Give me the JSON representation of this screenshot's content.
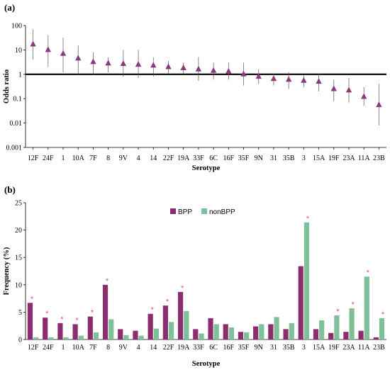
{
  "chart_data": [
    {
      "panel": "(a)",
      "type": "scatter",
      "xlabel": "Serotype",
      "ylabel": "Odds ratio",
      "yscale": "log",
      "ylim": [
        0.001,
        100
      ],
      "yticks": [
        "0.001",
        "0.01",
        "0.1",
        "1",
        "10",
        "100"
      ],
      "reference_line_y": 1,
      "marker": "triangle",
      "color": "#8b3a7a",
      "categories": [
        "12F",
        "24F",
        "1",
        "10A",
        "7F",
        "8",
        "9V",
        "4",
        "14",
        "22F",
        "19A",
        "33F",
        "6C",
        "16F",
        "35F",
        "9N",
        "31",
        "35B",
        "3",
        "15A",
        "19F",
        "23A",
        "11A",
        "23B"
      ],
      "values": [
        17,
        10,
        7,
        4.5,
        3.2,
        2.8,
        2.7,
        2.5,
        2.3,
        2.0,
        1.8,
        1.6,
        1.4,
        1.3,
        1.0,
        0.8,
        0.65,
        0.6,
        0.55,
        0.5,
        0.25,
        0.22,
        0.12,
        0.055
      ],
      "ci_low": [
        4,
        2,
        1.2,
        1.0,
        1.0,
        1.2,
        0.8,
        0.7,
        0.8,
        1.1,
        1.0,
        0.55,
        0.6,
        0.6,
        0.35,
        0.4,
        0.35,
        0.25,
        0.3,
        0.2,
        0.08,
        0.07,
        0.05,
        0.008
      ],
      "ci_high": [
        70,
        40,
        32,
        15,
        8,
        5,
        10,
        10,
        5,
        3.5,
        3,
        5,
        3,
        3,
        3,
        1.6,
        1.1,
        1.2,
        0.9,
        1.0,
        0.6,
        0.7,
        0.3,
        0.4
      ]
    },
    {
      "panel": "(b)",
      "type": "bar",
      "xlabel": "Serotype",
      "ylabel": "Frequency (%)",
      "ylim": [
        0,
        25
      ],
      "yticks": [
        0,
        5,
        10,
        15,
        20,
        25
      ],
      "categories": [
        "12F",
        "24F",
        "1",
        "10A",
        "7F",
        "8",
        "9V",
        "4",
        "14",
        "22F",
        "19A",
        "33F",
        "6C",
        "16F",
        "35F",
        "9N",
        "31",
        "35B",
        "3",
        "15A",
        "19F",
        "23A",
        "11A",
        "23B"
      ],
      "series": [
        {
          "name": "BPP",
          "color": "#8b2d6e",
          "values": [
            6.7,
            4.0,
            3.0,
            2.8,
            4.2,
            10.0,
            1.9,
            1.6,
            4.7,
            6.2,
            8.7,
            1.9,
            3.9,
            2.8,
            1.4,
            2.4,
            2.8,
            1.9,
            13.4,
            1.9,
            1.2,
            1.4,
            1.6,
            0.4
          ]
        },
        {
          "name": "nonBPP",
          "color": "#7fbf9a",
          "values": [
            0.4,
            0.4,
            0.4,
            0.7,
            1.3,
            3.7,
            0.8,
            0.7,
            2.0,
            3.2,
            5.2,
            1.1,
            2.8,
            2.2,
            1.3,
            2.8,
            4.1,
            3.0,
            21.4,
            3.5,
            4.4,
            5.7,
            11.5,
            3.9
          ]
        }
      ],
      "significance_marker": "*",
      "significant_categories": [
        "12F",
        "24F",
        "1",
        "10A",
        "7F",
        "8",
        "14",
        "22F",
        "19A",
        "3",
        "19F",
        "23A",
        "11A",
        "23B"
      ],
      "legend_position": "top-center"
    }
  ]
}
